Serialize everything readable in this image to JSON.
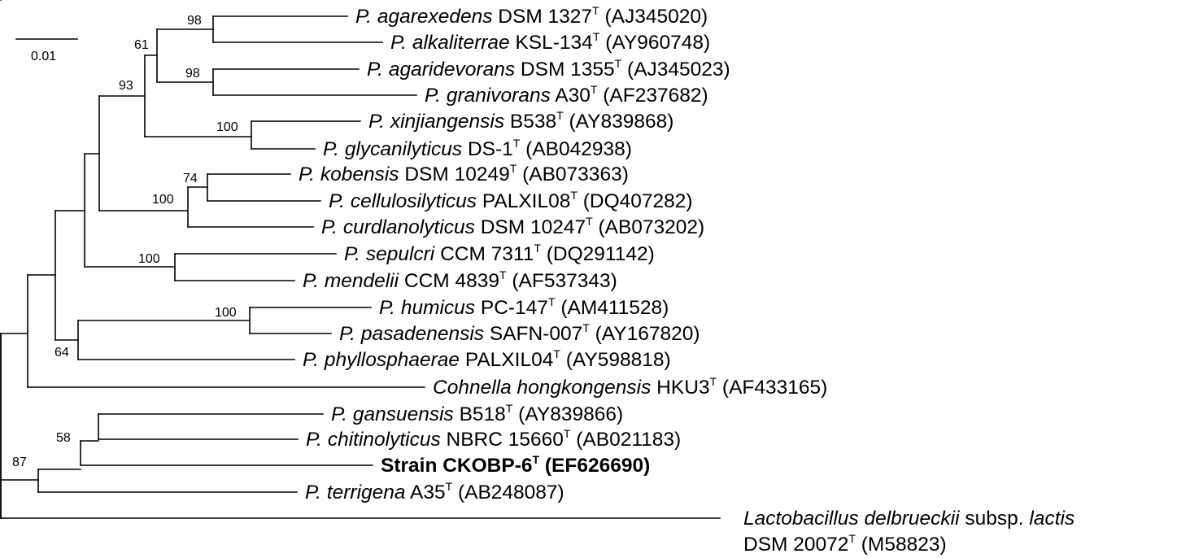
{
  "figure": {
    "type": "phylogenetic-tree",
    "scale_bar": {
      "label": "0.01",
      "value": 0.01
    }
  },
  "taxa": [
    {
      "id": "t1",
      "genus": "P.",
      "epithet": "agarexedens",
      "strain": "DSM 1327",
      "sup": "T",
      "accession": "(AJ345020)"
    },
    {
      "id": "t2",
      "genus": "P.",
      "epithet": "alkaliterrae",
      "strain": "KSL-134",
      "sup": "T",
      "accession": "(AY960748)"
    },
    {
      "id": "t3",
      "genus": "P.",
      "epithet": "agaridevorans",
      "strain": "DSM 1355",
      "sup": "T",
      "accession": "(AJ345023)"
    },
    {
      "id": "t4",
      "genus": "P.",
      "epithet": "granivorans",
      "strain": "A30",
      "sup": "T",
      "accession": "(AF237682)"
    },
    {
      "id": "t5",
      "genus": "P.",
      "epithet": "xinjiangensis",
      "strain": "B538",
      "sup": "T",
      "accession": "(AY839868)"
    },
    {
      "id": "t6",
      "genus": "P.",
      "epithet": "glycanilyticus",
      "strain": "DS-1",
      "sup": "T",
      "accession": "(AB042938)"
    },
    {
      "id": "t7",
      "genus": "P.",
      "epithet": "kobensis",
      "strain": "DSM 10249",
      "sup": "T",
      "accession": "(AB073363)"
    },
    {
      "id": "t8",
      "genus": "P.",
      "epithet": "cellulosilyticus",
      "strain": "PALXIL08",
      "sup": "T",
      "accession": "(DQ407282)"
    },
    {
      "id": "t9",
      "genus": "P.",
      "epithet": "curdlanolyticus",
      "strain": "DSM 10247",
      "sup": "T",
      "accession": "(AB073202)"
    },
    {
      "id": "t10",
      "genus": "P.",
      "epithet": "sepulcri",
      "strain": "CCM 7311",
      "sup": "T",
      "accession": "(DQ291142)"
    },
    {
      "id": "t11",
      "genus": "P.",
      "epithet": "mendelii",
      "strain": "CCM 4839",
      "sup": "T",
      "accession": "(AF537343)"
    },
    {
      "id": "t12",
      "genus": "P.",
      "epithet": "humicus",
      "strain": "PC-147",
      "sup": "T",
      "accession": "(AM411528)"
    },
    {
      "id": "t13",
      "genus": "P.",
      "epithet": "pasadenensis",
      "strain": "SAFN-007",
      "sup": "T",
      "accession": "(AY167820)"
    },
    {
      "id": "t14",
      "genus": "P.",
      "epithet": "phyllosphaerae",
      "strain": "PALXIL04",
      "sup": "T",
      "accession": "(AY598818)"
    },
    {
      "id": "t15",
      "genus": "Cohnella",
      "epithet": "hongkongensis",
      "strain": "HKU3",
      "sup": "T",
      "accession": "(AF433165)"
    },
    {
      "id": "t16",
      "genus": "P.",
      "epithet": "gansuensis",
      "strain": "B518",
      "sup": "T",
      "accession": "(AY839866)"
    },
    {
      "id": "t17",
      "genus": "P.",
      "epithet": "chitinolyticus",
      "strain": "NBRC 15660",
      "sup": "T",
      "accession": "(AB021183)"
    },
    {
      "id": "t18",
      "genus": "",
      "epithet": "",
      "strain": "Strain CKOBP-6",
      "sup": "T",
      "accession": "(EF626690)",
      "bold": true
    },
    {
      "id": "t19",
      "genus": "P.",
      "epithet": "terrigena",
      "strain": "A35",
      "sup": "T",
      "accession": "(AB248087)"
    },
    {
      "id": "t20",
      "genus": "Lactobacillus",
      "epithet": "delbrueckii",
      "subsp_label": "subsp.",
      "subsp": "lactis",
      "strain": "DSM 20072",
      "sup": "T",
      "accession": "(M58823)"
    }
  ],
  "bootstrap": [
    {
      "id": "b98a",
      "label": "98"
    },
    {
      "id": "b61",
      "label": "61"
    },
    {
      "id": "b98b",
      "label": "98"
    },
    {
      "id": "b93",
      "label": "93"
    },
    {
      "id": "b100a",
      "label": "100"
    },
    {
      "id": "b74",
      "label": "74"
    },
    {
      "id": "b100b",
      "label": "100"
    },
    {
      "id": "b100c",
      "label": "100"
    },
    {
      "id": "b100d",
      "label": "100"
    },
    {
      "id": "b64",
      "label": "64"
    },
    {
      "id": "b58",
      "label": "58"
    },
    {
      "id": "b87",
      "label": "87"
    }
  ]
}
